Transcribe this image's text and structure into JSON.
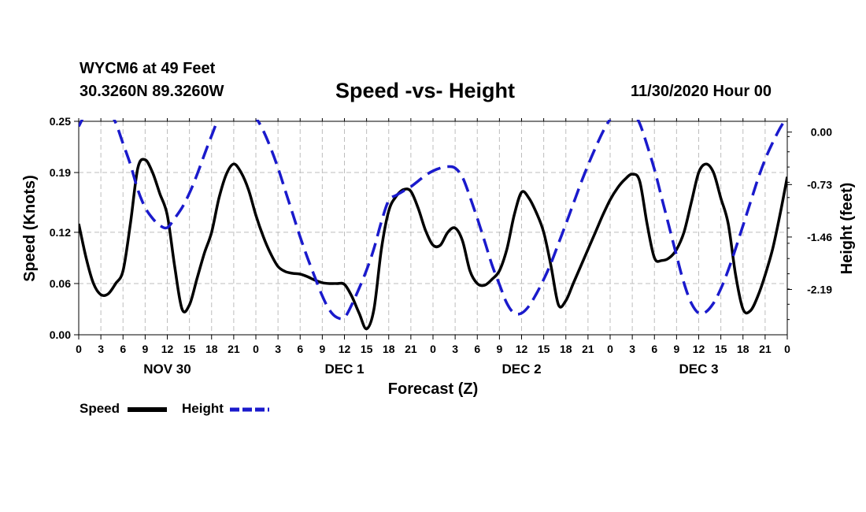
{
  "header": {
    "station": "WYCM6 at 49 Feet",
    "coords": "30.3260N 89.3260W",
    "title": "Speed -vs- Height",
    "datetime": "11/30/2020 Hour 00"
  },
  "legend": {
    "speed_label": "Speed",
    "height_label": "Height"
  },
  "colors": {
    "speed": "#000000",
    "height": "#1a1acc",
    "grid": "#bdbdbd"
  },
  "chart_data": {
    "type": "line",
    "title": "Speed -vs- Height",
    "xlabel": "Forecast (Z)",
    "ylabel": "Speed (Knots)",
    "y2label": "Height (feet)",
    "x_unit": "forecast hours from 11/30/2020 00Z",
    "xlim": [
      0,
      96
    ],
    "ylim": [
      0,
      0.25
    ],
    "y2lim": [
      -2.82,
      0.15
    ],
    "yticks": [
      0,
      0.06,
      0.12,
      0.19,
      0.25
    ],
    "yticks_labels": [
      "0.00",
      "0.06",
      "0.12",
      "0.19",
      "0.25"
    ],
    "y2ticks": [
      0.0,
      -0.73,
      -1.46,
      -2.19
    ],
    "y2ticks_labels": [
      "0.00",
      "-0.73",
      "-1.46",
      "-2.19"
    ],
    "xticks_labels": [
      "0",
      "3",
      "6",
      "9",
      "12",
      "15",
      "18",
      "21",
      "0",
      "3",
      "6",
      "9",
      "12",
      "15",
      "18",
      "21",
      "0",
      "3",
      "6",
      "9",
      "12",
      "15",
      "18",
      "21",
      "0",
      "3",
      "6",
      "9",
      "12",
      "15",
      "18",
      "21",
      "0"
    ],
    "day_labels": [
      {
        "hour": 12,
        "label": "NOV 30"
      },
      {
        "hour": 36,
        "label": "DEC 1"
      },
      {
        "hour": 60,
        "label": "DEC 2"
      },
      {
        "hour": 84,
        "label": "DEC 3"
      }
    ],
    "grid": true,
    "legend_position": "bottom-left",
    "series": [
      {
        "name": "Speed",
        "axis": "left",
        "style": "solid",
        "x": [
          0,
          1,
          2,
          3,
          4,
          5,
          6,
          7,
          8,
          9,
          10,
          11,
          12,
          13,
          14,
          15,
          16,
          17,
          18,
          19,
          20,
          21,
          22,
          23,
          24,
          25,
          26,
          27,
          28,
          29,
          30,
          31,
          32,
          33,
          34,
          35,
          36,
          37,
          38,
          39,
          40,
          41,
          42,
          43,
          44,
          45,
          46,
          47,
          48,
          49,
          50,
          51,
          52,
          53,
          54,
          55,
          56,
          57,
          58,
          59,
          60,
          61,
          62,
          63,
          64,
          65,
          66,
          67,
          68,
          69,
          70,
          71,
          72,
          73,
          74,
          75,
          76,
          77,
          78,
          79,
          80,
          81,
          82,
          83,
          84,
          85,
          86,
          87,
          88,
          89,
          90,
          91,
          92,
          93,
          94,
          95,
          96
        ],
        "values": [
          0.13,
          0.09,
          0.06,
          0.047,
          0.048,
          0.06,
          0.075,
          0.13,
          0.195,
          0.205,
          0.19,
          0.165,
          0.14,
          0.08,
          0.03,
          0.035,
          0.065,
          0.095,
          0.12,
          0.16,
          0.188,
          0.2,
          0.19,
          0.17,
          0.14,
          0.115,
          0.095,
          0.08,
          0.074,
          0.072,
          0.071,
          0.068,
          0.064,
          0.061,
          0.06,
          0.06,
          0.059,
          0.045,
          0.025,
          0.007,
          0.03,
          0.1,
          0.145,
          0.162,
          0.17,
          0.168,
          0.148,
          0.122,
          0.105,
          0.105,
          0.12,
          0.125,
          0.11,
          0.075,
          0.06,
          0.058,
          0.065,
          0.075,
          0.1,
          0.14,
          0.167,
          0.16,
          0.143,
          0.12,
          0.08,
          0.035,
          0.04,
          0.06,
          0.08,
          0.1,
          0.12,
          0.14,
          0.158,
          0.172,
          0.182,
          0.188,
          0.18,
          0.13,
          0.09,
          0.087,
          0.09,
          0.1,
          0.12,
          0.155,
          0.19,
          0.2,
          0.19,
          0.16,
          0.13,
          0.07,
          0.03,
          0.028,
          0.045,
          0.07,
          0.1,
          0.14,
          0.185
        ]
      },
      {
        "name": "Height",
        "axis": "right",
        "style": "dashed",
        "x": [
          0,
          1,
          2,
          3,
          4,
          5,
          6,
          7,
          8,
          9,
          10,
          11,
          12,
          13,
          14,
          15,
          16,
          17,
          18,
          19,
          20,
          21,
          22,
          23,
          24,
          25,
          26,
          27,
          28,
          29,
          30,
          31,
          32,
          33,
          34,
          35,
          36,
          37,
          38,
          39,
          40,
          41,
          42,
          43,
          44,
          45,
          46,
          47,
          48,
          49,
          50,
          51,
          52,
          53,
          54,
          55,
          56,
          57,
          58,
          59,
          60,
          61,
          62,
          63,
          64,
          65,
          66,
          67,
          68,
          69,
          70,
          71,
          72,
          73,
          74,
          75,
          76,
          77,
          78,
          79,
          80,
          81,
          82,
          83,
          84,
          85,
          86,
          87,
          88,
          89,
          90,
          91,
          92,
          93,
          94,
          95,
          96
        ],
        "values": [
          0.08,
          0.27,
          0.35,
          0.37,
          0.3,
          0.13,
          -0.16,
          -0.45,
          -0.8,
          -1.05,
          -1.2,
          -1.3,
          -1.33,
          -1.2,
          -1.05,
          -0.85,
          -0.6,
          -0.32,
          -0.05,
          0.2,
          0.34,
          0.37,
          0.35,
          0.3,
          0.2,
          0.02,
          -0.22,
          -0.5,
          -0.82,
          -1.14,
          -1.46,
          -1.75,
          -2.02,
          -2.28,
          -2.48,
          -2.58,
          -2.58,
          -2.4,
          -2.17,
          -1.92,
          -1.62,
          -1.25,
          -0.95,
          -0.88,
          -0.82,
          -0.76,
          -0.68,
          -0.6,
          -0.54,
          -0.5,
          -0.48,
          -0.5,
          -0.63,
          -0.9,
          -1.2,
          -1.52,
          -1.85,
          -2.12,
          -2.38,
          -2.52,
          -2.52,
          -2.42,
          -2.25,
          -2.05,
          -1.82,
          -1.55,
          -1.28,
          -1.0,
          -0.72,
          -0.46,
          -0.22,
          0.0,
          0.18,
          0.3,
          0.35,
          0.3,
          0.12,
          -0.18,
          -0.52,
          -0.92,
          -1.32,
          -1.72,
          -2.1,
          -2.38,
          -2.52,
          -2.5,
          -2.38,
          -2.18,
          -1.92,
          -1.62,
          -1.3,
          -0.98,
          -0.66,
          -0.38,
          -0.15,
          0.05,
          0.22
        ]
      }
    ]
  }
}
